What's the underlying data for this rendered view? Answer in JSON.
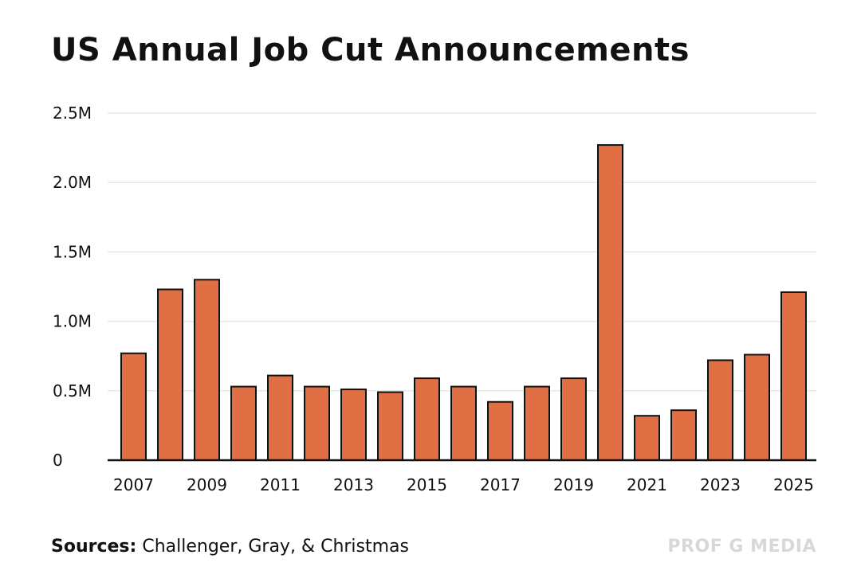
{
  "header": {
    "title": "US Annual Job Cut Announcements"
  },
  "footer": {
    "sources_label": "Sources:",
    "sources_text": "Challenger, Gray, & Christmas",
    "brand": "PROF G MEDIA"
  },
  "colors": {
    "bar": "#e07043",
    "bar_stroke": "#111111",
    "grid": "#e8e8e8",
    "axis": "#111111"
  },
  "chart_data": {
    "type": "bar",
    "title": "US Annual Job Cut Announcements",
    "xlabel": "",
    "ylabel": "",
    "ylim": [
      0,
      2500000
    ],
    "grid": true,
    "y_ticks": [
      {
        "value": 0,
        "label": "0"
      },
      {
        "value": 500000,
        "label": "0.5M"
      },
      {
        "value": 1000000,
        "label": "1.0M"
      },
      {
        "value": 1500000,
        "label": "1.5M"
      },
      {
        "value": 2000000,
        "label": "2.0M"
      },
      {
        "value": 2500000,
        "label": "2.5M"
      }
    ],
    "categories": [
      "2007",
      "2008",
      "2009",
      "2010",
      "2011",
      "2012",
      "2013",
      "2014",
      "2015",
      "2016",
      "2017",
      "2018",
      "2019",
      "2020",
      "2021",
      "2022",
      "2023",
      "2024",
      "2025"
    ],
    "x_tick_labels": [
      "2007",
      "2009",
      "2011",
      "2013",
      "2015",
      "2017",
      "2019",
      "2021",
      "2023",
      "2025"
    ],
    "values": [
      770000,
      1230000,
      1300000,
      530000,
      610000,
      530000,
      510000,
      490000,
      590000,
      530000,
      420000,
      530000,
      590000,
      2270000,
      320000,
      360000,
      720000,
      760000,
      1210000
    ]
  }
}
